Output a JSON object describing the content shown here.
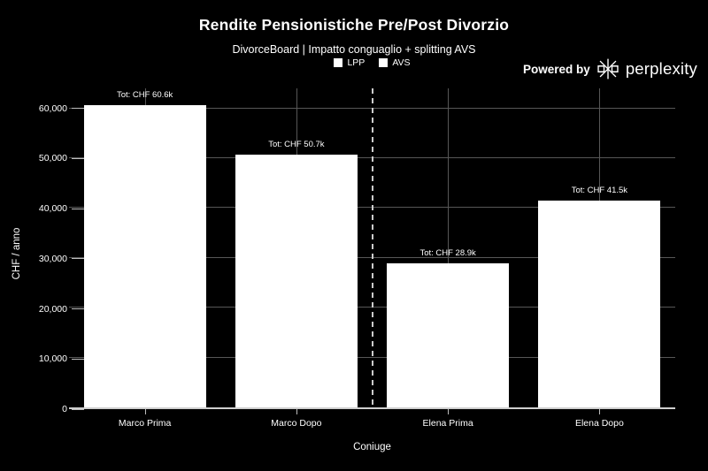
{
  "header": {
    "title": "Rendite Pensionistiche Pre/Post Divorzio",
    "subtitle": "DivorceBoard | Impatto conguaglio + splitting AVS",
    "powered_by": "Powered by",
    "brand": "perplexity"
  },
  "legend": {
    "items": [
      {
        "label": "LPP",
        "color": "#ffffff"
      },
      {
        "label": "AVS",
        "color": "#ffffff"
      }
    ]
  },
  "chart_data": {
    "type": "bar",
    "stacked": true,
    "title": "Rendite Pensionistiche Pre/Post Divorzio",
    "subtitle": "DivorceBoard | Impatto conguaglio + splitting AVS",
    "categories": [
      "Marco Prima",
      "Marco Dopo",
      "Elena Prima",
      "Elena Dopo"
    ],
    "values": [
      60600,
      50700,
      28900,
      41500
    ],
    "bar_labels": [
      "Tot: CHF 60.6k",
      "Tot: CHF 50.7k",
      "Tot: CHF 28.9k",
      "Tot: CHF 41.5k"
    ],
    "legend_entries": [
      "LPP",
      "AVS"
    ],
    "xlabel": "Coniuge",
    "ylabel": "CHF / anno",
    "ylim": [
      0,
      64000
    ],
    "yticks": [
      {
        "value": 0,
        "label": "0"
      },
      {
        "value": 10000,
        "label": "10,000"
      },
      {
        "value": 20000,
        "label": "20,000"
      },
      {
        "value": 30000,
        "label": "30,000"
      },
      {
        "value": 40000,
        "label": "40,000"
      },
      {
        "value": 50000,
        "label": "50,000"
      },
      {
        "value": 60000,
        "label": "60,000"
      }
    ],
    "grid": true,
    "separator_after_index": 1,
    "legend_position": "top-center",
    "colors": {
      "background": "#000000",
      "bar": "#ffffff",
      "text": "#ffffff",
      "grid": "#575757",
      "axis": "#cfcfcf",
      "dashed_separator": "#cccccc"
    }
  }
}
